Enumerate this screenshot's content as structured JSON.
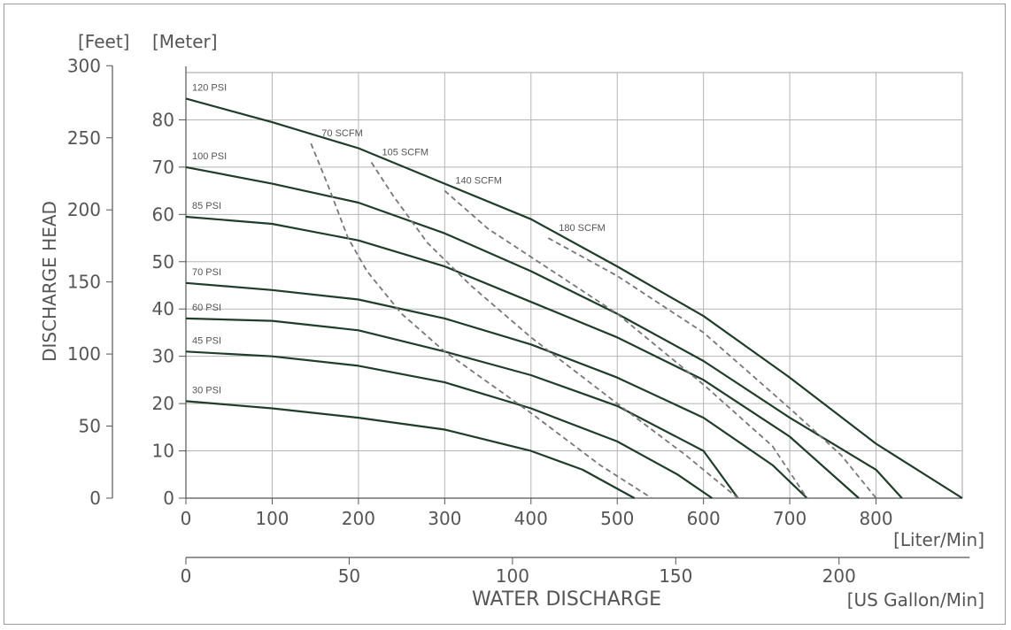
{
  "chart_data": {
    "type": "line",
    "title": "",
    "xlabel": "WATER DISCHARGE",
    "ylabel": "DISCHARGE HEAD",
    "x_unit_primary": "[Liter/Min]",
    "x_unit_secondary": "[US Gallon/Min]",
    "y_unit_feet": "[Feet]",
    "y_unit_meter": "[Meter]",
    "xlim": [
      0,
      900
    ],
    "ylim_meter": [
      0,
      90
    ],
    "x_ticks_liter": [
      0,
      100,
      200,
      300,
      400,
      500,
      600,
      700,
      800
    ],
    "x_ticks_gallon": [
      0,
      50,
      100,
      150,
      200
    ],
    "y_ticks_meter": [
      0,
      10,
      20,
      30,
      40,
      50,
      60,
      70,
      80
    ],
    "y_ticks_feet": [
      0,
      50,
      100,
      150,
      200,
      250,
      300
    ],
    "grid": true,
    "series": [
      {
        "name": "120 PSI",
        "points": [
          [
            0,
            84.5
          ],
          [
            100,
            79.5
          ],
          [
            200,
            74
          ],
          [
            300,
            66.5
          ],
          [
            400,
            59
          ],
          [
            500,
            49
          ],
          [
            600,
            38.5
          ],
          [
            700,
            25.5
          ],
          [
            800,
            11.5
          ],
          [
            900,
            0
          ]
        ]
      },
      {
        "name": "100 PSI",
        "points": [
          [
            0,
            70
          ],
          [
            100,
            66.5
          ],
          [
            200,
            62.5
          ],
          [
            300,
            56
          ],
          [
            400,
            48
          ],
          [
            500,
            39
          ],
          [
            600,
            29
          ],
          [
            700,
            17
          ],
          [
            800,
            6
          ],
          [
            830,
            0
          ]
        ]
      },
      {
        "name": "85 PSI",
        "points": [
          [
            0,
            59.5
          ],
          [
            100,
            58
          ],
          [
            200,
            54.5
          ],
          [
            300,
            49
          ],
          [
            400,
            41.5
          ],
          [
            500,
            34
          ],
          [
            600,
            25
          ],
          [
            700,
            13
          ],
          [
            780,
            0
          ]
        ]
      },
      {
        "name": "70 PSI",
        "points": [
          [
            0,
            45.5
          ],
          [
            100,
            44
          ],
          [
            200,
            42
          ],
          [
            300,
            38
          ],
          [
            400,
            32.5
          ],
          [
            500,
            25.5
          ],
          [
            600,
            17
          ],
          [
            680,
            7
          ],
          [
            720,
            0
          ]
        ]
      },
      {
        "name": "60 PSI",
        "points": [
          [
            0,
            38
          ],
          [
            100,
            37.5
          ],
          [
            200,
            35.5
          ],
          [
            300,
            31
          ],
          [
            400,
            26
          ],
          [
            500,
            19.5
          ],
          [
            600,
            10
          ],
          [
            640,
            0
          ]
        ]
      },
      {
        "name": "45 PSI",
        "points": [
          [
            0,
            31
          ],
          [
            100,
            30
          ],
          [
            200,
            28
          ],
          [
            300,
            24.5
          ],
          [
            400,
            19
          ],
          [
            500,
            12
          ],
          [
            570,
            5
          ],
          [
            610,
            0
          ]
        ]
      },
      {
        "name": "30 PSI",
        "points": [
          [
            0,
            20.5
          ],
          [
            100,
            19
          ],
          [
            200,
            17
          ],
          [
            300,
            14.5
          ],
          [
            400,
            10
          ],
          [
            460,
            6
          ],
          [
            520,
            0
          ]
        ]
      }
    ],
    "air_consumption": [
      {
        "name": "70 SCFM",
        "points": [
          [
            145,
            75
          ],
          [
            165,
            66
          ],
          [
            188,
            55
          ],
          [
            210,
            48
          ],
          [
            250,
            39
          ],
          [
            300,
            31
          ],
          [
            400,
            18
          ],
          [
            480,
            7
          ],
          [
            540,
            0
          ]
        ]
      },
      {
        "name": "105 SCFM",
        "points": [
          [
            215,
            71
          ],
          [
            240,
            64
          ],
          [
            280,
            54
          ],
          [
            330,
            45
          ],
          [
            400,
            34
          ],
          [
            500,
            20
          ],
          [
            580,
            9
          ],
          [
            640,
            0
          ]
        ]
      },
      {
        "name": "140 SCFM",
        "points": [
          [
            300,
            65
          ],
          [
            350,
            57
          ],
          [
            400,
            51
          ],
          [
            500,
            39
          ],
          [
            600,
            24
          ],
          [
            680,
            11
          ],
          [
            720,
            0
          ]
        ]
      },
      {
        "name": "180 SCFM",
        "points": [
          [
            420,
            55
          ],
          [
            500,
            47
          ],
          [
            600,
            35
          ],
          [
            700,
            19
          ],
          [
            760,
            9
          ],
          [
            800,
            0
          ]
        ]
      }
    ]
  }
}
